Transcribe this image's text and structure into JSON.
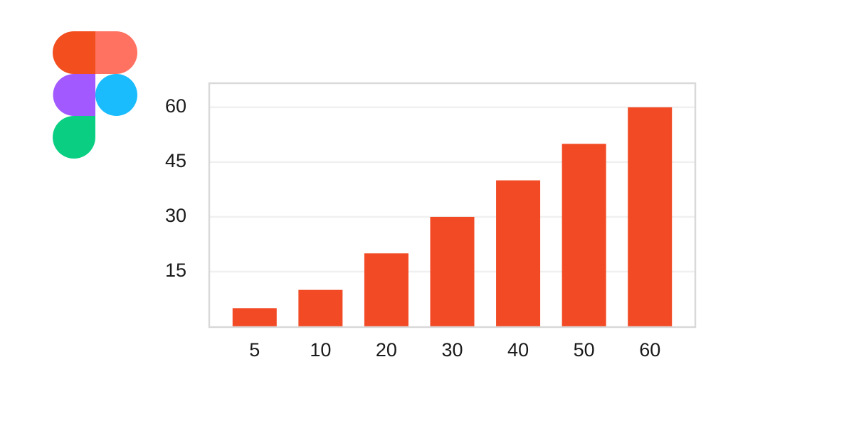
{
  "chart_data": {
    "type": "bar",
    "categories": [
      "5",
      "10",
      "20",
      "30",
      "40",
      "50",
      "60"
    ],
    "values": [
      5,
      10,
      20,
      30,
      40,
      50,
      60
    ],
    "color": "#f24a24",
    "ylim": [
      0,
      66.6
    ],
    "yticks": [
      15,
      30,
      45,
      60
    ],
    "grid": true
  }
}
